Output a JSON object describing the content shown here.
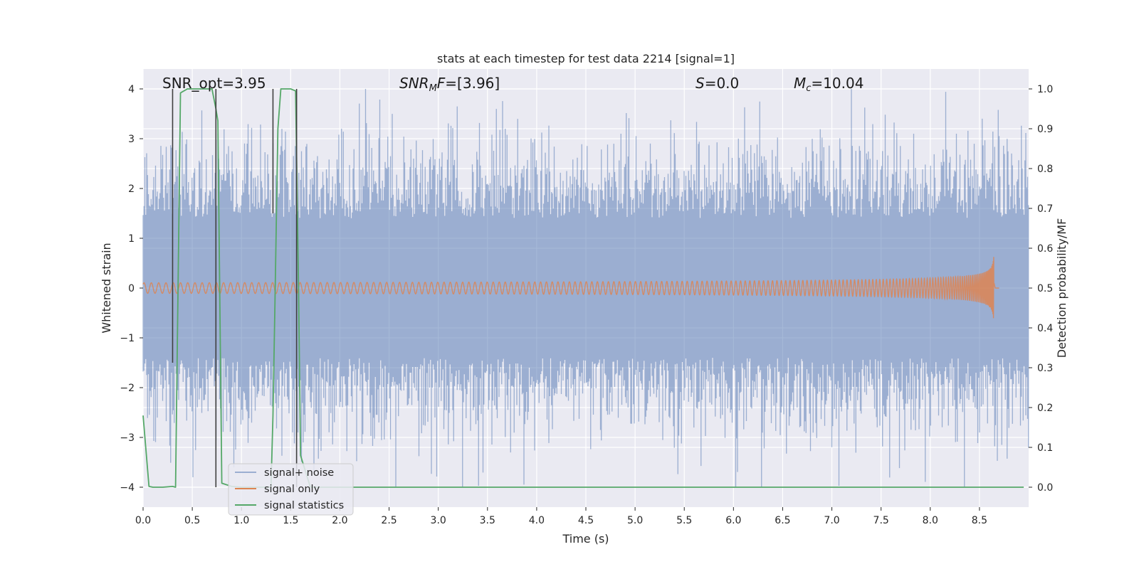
{
  "chart_data": {
    "type": "line",
    "title": "stats at each timestep for test data 2214 [signal=1]",
    "xlabel": "Time (s)",
    "ylabel": "Whitened strain",
    "y2label": "Detection probability/MF",
    "xlim": [
      0.0,
      9.0
    ],
    "ylim": [
      -4.4,
      4.4
    ],
    "y2lim": [
      -0.05,
      1.05
    ],
    "xticks": [
      0.0,
      0.5,
      1.0,
      1.5,
      2.0,
      2.5,
      3.0,
      3.5,
      4.0,
      4.5,
      5.0,
      5.5,
      6.0,
      6.5,
      7.0,
      7.5,
      8.0,
      8.5
    ],
    "xtick_labels": [
      "0.0",
      "0.5",
      "1.0",
      "1.5",
      "2.0",
      "2.5",
      "3.0",
      "3.5",
      "4.0",
      "4.5",
      "5.0",
      "5.5",
      "6.0",
      "6.5",
      "7.0",
      "7.5",
      "8.0",
      "8.5"
    ],
    "yticks": [
      -4,
      -3,
      -2,
      -1,
      0,
      1,
      2,
      3,
      4
    ],
    "ytick_labels": [
      "−4",
      "−3",
      "−2",
      "−1",
      "0",
      "1",
      "2",
      "3",
      "4"
    ],
    "y2ticks": [
      0.0,
      0.1,
      0.2,
      0.3,
      0.4,
      0.5,
      0.6,
      0.7,
      0.8,
      0.9,
      1.0
    ],
    "y2tick_labels": [
      "0.0",
      "0.1",
      "0.2",
      "0.3",
      "0.4",
      "0.5",
      "0.6",
      "0.7",
      "0.8",
      "0.9",
      "1.0"
    ],
    "grid": true,
    "legend_position": "lower-left",
    "series": [
      {
        "name": "signal+ noise",
        "color": "#4c72b0",
        "kind": "noise",
        "t_start": 0.0,
        "t_end": 9.0,
        "approx_range": [
          -4.0,
          4.0
        ]
      },
      {
        "name": "signal only",
        "color": "#dd8452",
        "kind": "chirp",
        "peak_time": 8.65,
        "peak_amplitude": 0.65
      },
      {
        "name": "signal statistics",
        "color": "#55a868",
        "axis": "right",
        "x": [
          0.0,
          0.06,
          0.1,
          0.2,
          0.3,
          0.33,
          0.38,
          0.45,
          0.55,
          0.65,
          0.7,
          0.74,
          0.76,
          0.8,
          0.9,
          1.0,
          1.1,
          1.2,
          1.3,
          1.32,
          1.34,
          1.37,
          1.4,
          1.5,
          1.55,
          1.58,
          1.6,
          1.7,
          2.0,
          3.0,
          4.0,
          5.0,
          6.0,
          7.0,
          8.0,
          8.95
        ],
        "y": [
          0.18,
          0.002,
          0.0,
          0.0,
          0.002,
          0.0,
          0.99,
          1.0,
          1.0,
          1.0,
          1.0,
          0.95,
          0.92,
          0.01,
          0.002,
          0.0,
          0.0,
          0.0,
          0.0,
          0.18,
          0.46,
          0.9,
          1.0,
          1.0,
          0.995,
          0.5,
          0.08,
          0.0,
          0.0,
          0.0,
          0.0,
          0.0,
          0.0,
          0.0,
          0.0,
          0.0
        ]
      }
    ],
    "markers": {
      "color": "#404040",
      "segments": [
        {
          "x": 0.3,
          "y_top": 4.0,
          "y_bottom": -1.5
        },
        {
          "x": 0.74,
          "y_top": 4.0,
          "y_bottom": -4.0
        },
        {
          "x": 1.32,
          "y_top": 4.0,
          "y_bottom": 1.5
        },
        {
          "x": 1.56,
          "y_top": 4.0,
          "y_bottom": -4.0
        }
      ]
    },
    "annotations": [
      {
        "text": "SNR_opt=3.95",
        "x": 0.2,
        "y": 4.0
      },
      {
        "text": "=[3.96]",
        "math": "SNR_MF",
        "x": 2.6,
        "y": 4.0
      },
      {
        "text": "=0.0",
        "math": "S",
        "x": 5.6,
        "y": 4.0
      },
      {
        "text": "=10.04",
        "math": "M_c",
        "x": 6.6,
        "y": 4.0
      }
    ]
  }
}
